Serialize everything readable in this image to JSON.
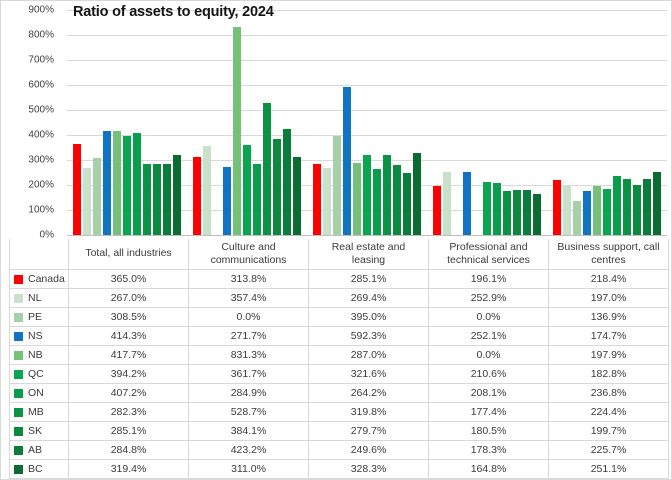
{
  "chart": {
    "title": "Ratio of assets to equity, 2024"
  },
  "chart_data": {
    "type": "bar",
    "title": "Ratio of assets to equity, 2024",
    "categories": [
      "Total, all industries",
      "Culture and communications",
      "Real estate and leasing",
      "Professional and technical services",
      "Business support, call centres"
    ],
    "series": [
      {
        "name": "Canada",
        "color": "#ff0000",
        "values": [
          365.0,
          313.8,
          285.1,
          196.1,
          218.4
        ]
      },
      {
        "name": "NL",
        "color": "#c9e0ca",
        "values": [
          267.0,
          357.4,
          269.4,
          252.9,
          197.0
        ]
      },
      {
        "name": "PE",
        "color": "#a6d0a8",
        "values": [
          308.5,
          0.0,
          395.0,
          0.0,
          136.9
        ]
      },
      {
        "name": "NS",
        "color": "#1173c4",
        "values": [
          414.3,
          271.7,
          592.3,
          252.1,
          174.7
        ]
      },
      {
        "name": "NB",
        "color": "#74c177",
        "values": [
          417.7,
          831.3,
          287.0,
          0.0,
          197.9
        ]
      },
      {
        "name": "QC",
        "color": "#0aa551",
        "values": [
          394.2,
          361.7,
          321.6,
          210.6,
          182.8
        ]
      },
      {
        "name": "ON",
        "color": "#0a9d4b",
        "values": [
          407.2,
          284.9,
          264.2,
          208.1,
          236.8
        ]
      },
      {
        "name": "MB",
        "color": "#0b9245",
        "values": [
          282.3,
          528.7,
          319.8,
          177.4,
          224.4
        ]
      },
      {
        "name": "SK",
        "color": "#0c883f",
        "values": [
          285.1,
          384.1,
          279.7,
          180.5,
          199.7
        ]
      },
      {
        "name": "AB",
        "color": "#0b7d3a",
        "values": [
          284.8,
          423.2,
          249.6,
          178.3,
          225.7
        ]
      },
      {
        "name": "BC",
        "color": "#0c6b33",
        "values": [
          319.4,
          311.0,
          328.3,
          164.8,
          251.1
        ]
      }
    ],
    "ylim": [
      0,
      900
    ],
    "y_ticks": [
      "0%",
      "100%",
      "200%",
      "300%",
      "400%",
      "500%",
      "600%",
      "700%",
      "800%",
      "900%"
    ],
    "grid": true,
    "legend_position": "data-table-left"
  },
  "table": {
    "headers": [
      "Total, all industries",
      "Culture and communications",
      "Real estate and leasing",
      "Professional and technical services",
      "Business support, call centres"
    ],
    "rows": [
      {
        "label": "Canada",
        "values": [
          "365.0%",
          "313.8%",
          "285.1%",
          "196.1%",
          "218.4%"
        ]
      },
      {
        "label": "NL",
        "values": [
          "267.0%",
          "357.4%",
          "269.4%",
          "252.9%",
          "197.0%"
        ]
      },
      {
        "label": "PE",
        "values": [
          "308.5%",
          "0.0%",
          "395.0%",
          "0.0%",
          "136.9%"
        ]
      },
      {
        "label": "NS",
        "values": [
          "414.3%",
          "271.7%",
          "592.3%",
          "252.1%",
          "174.7%"
        ]
      },
      {
        "label": "NB",
        "values": [
          "417.7%",
          "831.3%",
          "287.0%",
          "0.0%",
          "197.9%"
        ]
      },
      {
        "label": "QC",
        "values": [
          "394.2%",
          "361.7%",
          "321.6%",
          "210.6%",
          "182.8%"
        ]
      },
      {
        "label": "ON",
        "values": [
          "407.2%",
          "284.9%",
          "264.2%",
          "208.1%",
          "236.8%"
        ]
      },
      {
        "label": "MB",
        "values": [
          "282.3%",
          "528.7%",
          "319.8%",
          "177.4%",
          "224.4%"
        ]
      },
      {
        "label": "SK",
        "values": [
          "285.1%",
          "384.1%",
          "279.7%",
          "180.5%",
          "199.7%"
        ]
      },
      {
        "label": "AB",
        "values": [
          "284.8%",
          "423.2%",
          "249.6%",
          "178.3%",
          "225.7%"
        ]
      },
      {
        "label": "BC",
        "values": [
          "319.4%",
          "311.0%",
          "328.3%",
          "164.8%",
          "251.1%"
        ]
      }
    ]
  }
}
